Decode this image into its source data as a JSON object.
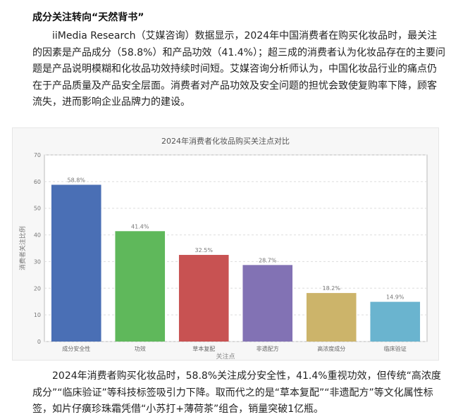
{
  "article": {
    "heading": "成分关注转向“天然背书”",
    "paragraph1": "iiMedia Research（艾媒咨询）数据显示，2024年中国消费者在购买化妆品时，最关注的因素是产品成分（58.8%）和产品功效（41.4%）；超三成的消费者认为化妆品存在的主要问题是产品说明模糊和化妆品功效持续时间短。艾媒咨询分析师认为，中国化妆品行业的痛点仍在于产品质量及产品安全层面。消费者对产品功效及安全问题的担忧会致使复购率下降，顾客流失，进而影响企业品牌力的建设。",
    "paragraph2": "2024年消费者购买化妆品时，58.8%关注成分安全性，41.4%重视功效，但传统“高浓度成分”“临床验证”等科技标签吸引力下降。取而代之的是“草本复配”“非遗配方”等文化属性标签，如片仔癀珍珠霜凭借“小苏打+薄荷茶”组合，销量突破1亿瓶。"
  },
  "chart_data": {
    "type": "bar",
    "title": "2024年消费者化妆品购买关注点对比",
    "xlabel": "关注点",
    "ylabel": "消费者关注比例",
    "categories": [
      "成分安全性",
      "功效",
      "草本复配",
      "非遗配方",
      "高浓度成分",
      "临床验证"
    ],
    "values": [
      58.8,
      41.4,
      32.5,
      28.7,
      18.2,
      14.9
    ],
    "value_labels": [
      "58.8%",
      "41.4%",
      "32.5%",
      "28.7%",
      "18.2%",
      "14.9%"
    ],
    "colors": [
      "#4a6fb5",
      "#5fb85b",
      "#c85252",
      "#8272b4",
      "#ccb46a",
      "#6ab4cf"
    ],
    "yticks": [
      0,
      10,
      20,
      30,
      40,
      50,
      60,
      70
    ],
    "ylim": [
      0,
      70
    ],
    "grid": true
  }
}
